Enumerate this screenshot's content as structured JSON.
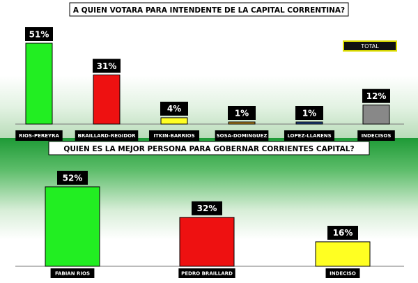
{
  "chart_data": [
    {
      "type": "bar",
      "title": "A QUIEN VOTARA PARA INTENDENTE DE LA CAPITAL CORRENTINA?",
      "legend": "TOTAL",
      "categories": [
        "RIOS-PEREYRA",
        "BRAILLARD-REGIDOR",
        "ITKIN-BARRIOS",
        "SOSA-DOMINGUEZ",
        "LOPEZ-LLARENS",
        "INDECISOS"
      ],
      "values": [
        51,
        31,
        4,
        1,
        1,
        12
      ],
      "labels": [
        "51%",
        "31%",
        "4%",
        "1%",
        "1%",
        "12%"
      ],
      "colors": [
        "#22ee22",
        "#ee1111",
        "#ffff22",
        "#bb8822",
        "#224488",
        "#888888"
      ],
      "ylim": [
        0,
        60
      ]
    },
    {
      "type": "bar",
      "title": "QUIEN ES LA MEJOR PERSONA PARA GOBERNAR CORRIENTES CAPITAL?",
      "categories": [
        "FABIAN RIOS",
        "PEDRO BRAILLARD",
        "INDECISO"
      ],
      "values": [
        52,
        32,
        16
      ],
      "labels": [
        "52%",
        "32%",
        "16%"
      ],
      "colors": [
        "#22ee22",
        "#ee1111",
        "#ffff22"
      ],
      "ylim": [
        0,
        60
      ]
    }
  ]
}
